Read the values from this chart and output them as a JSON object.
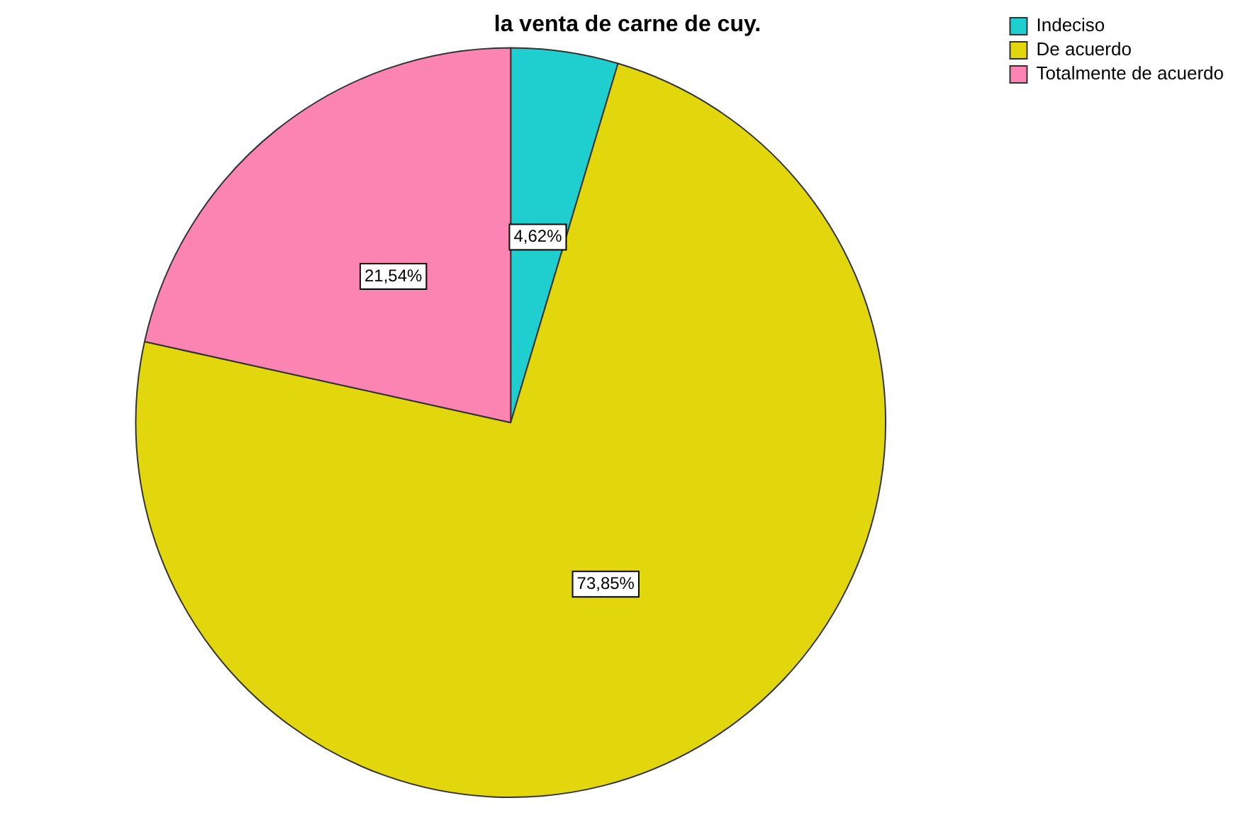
{
  "chart_data": {
    "type": "pie",
    "title": "la venta de carne de cuy.",
    "categories": [
      "Indeciso",
      "De acuerdo",
      "Totalmente de acuerdo"
    ],
    "values": [
      4.62,
      73.85,
      21.54
    ],
    "value_labels": [
      "4,62%",
      "73,85%",
      "21,54%"
    ],
    "colors": [
      "#1fcecf",
      "#e2d70d",
      "#fc84b3"
    ],
    "legend": "top right"
  }
}
